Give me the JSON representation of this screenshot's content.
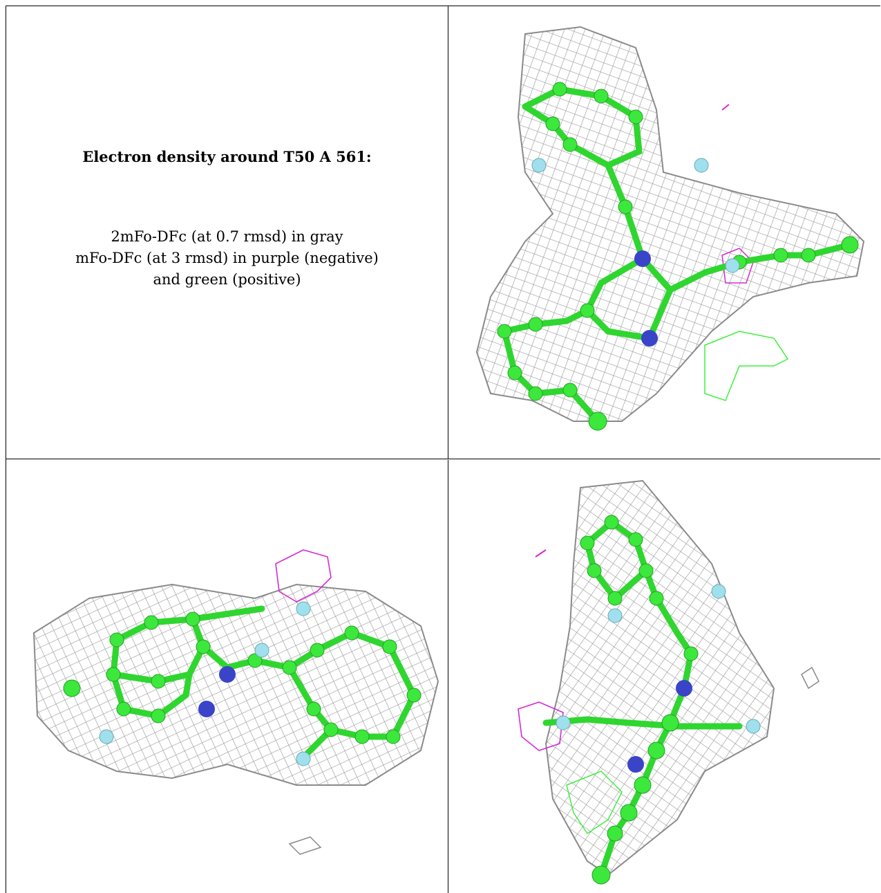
{
  "caption": {
    "title": "Electron density around T50 A 561:",
    "line1": "2mFo-DFc (at 0.7 rmsd) in gray",
    "line2": "mFo-DFc (at 3 rmsd) in purple (negative)",
    "line3": "and green (positive)"
  },
  "colors": {
    "density_2fofc": "#9a9a9a",
    "density_negative": "#d42ad4",
    "density_positive": "#3cf03c",
    "carbon": "#3be83b",
    "nitrogen": "#3a44c8",
    "fluorine": "#9fe0ec"
  }
}
